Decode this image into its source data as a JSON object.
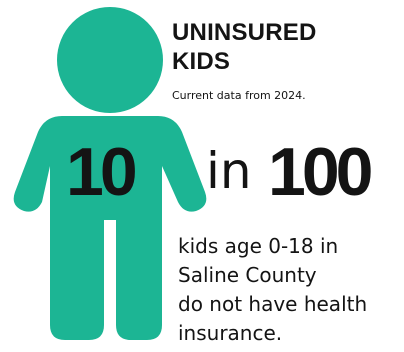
{
  "colors": {
    "figure": "#1cb594",
    "text": "#141414"
  },
  "figure": {
    "icon": "child-person-icon"
  },
  "title": {
    "line1": "UNINSURED",
    "line2": "KIDS"
  },
  "subtitle": "Current data from 2024.",
  "stat": {
    "numerator": "10",
    "connector": "in",
    "denominator": "100"
  },
  "description": {
    "line1": "kids age 0-18 in",
    "line2": "Saline County",
    "line3": "do not have health",
    "line4": "insurance."
  }
}
